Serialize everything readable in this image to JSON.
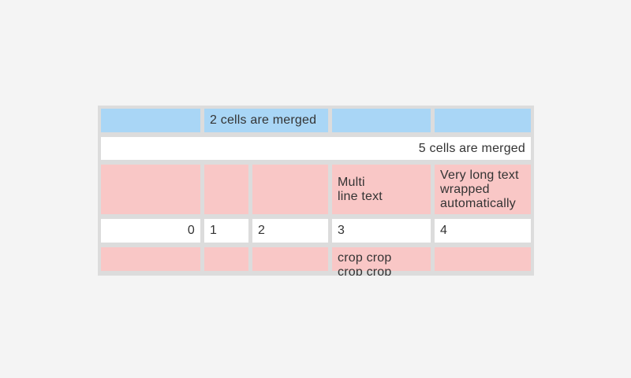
{
  "page": {
    "background": "#f4f4f4"
  },
  "table": {
    "background": "#dcdcdc",
    "colors": {
      "blue": "#a9d6f6",
      "pink": "#f9c7c6",
      "white": "#ffffff",
      "text": "#333333"
    },
    "rows": [
      {
        "name": "header-row",
        "cells": [
          {
            "text": "",
            "span": 1,
            "bg": "blue"
          },
          {
            "text": "2 cells are merged",
            "span": 2,
            "bg": "blue"
          },
          {
            "text": "",
            "span": 1,
            "bg": "blue"
          },
          {
            "text": "",
            "span": 1,
            "bg": "blue"
          }
        ]
      },
      {
        "name": "full-merged-row",
        "cells": [
          {
            "text": "5 cells are merged",
            "span": 5,
            "bg": "white",
            "align": "right"
          }
        ]
      },
      {
        "name": "multiline-row",
        "cells": [
          {
            "text": "",
            "span": 1,
            "bg": "pink"
          },
          {
            "text": "",
            "span": 1,
            "bg": "pink"
          },
          {
            "text": "",
            "span": 1,
            "bg": "pink"
          },
          {
            "text": "Multi\nline text",
            "span": 1,
            "bg": "pink"
          },
          {
            "text": "Very long text wrapped automatically",
            "span": 1,
            "bg": "pink"
          }
        ]
      },
      {
        "name": "numbers-row",
        "cells": [
          {
            "text": "0",
            "span": 1,
            "bg": "white",
            "align": "right"
          },
          {
            "text": "1",
            "span": 1,
            "bg": "white"
          },
          {
            "text": "2",
            "span": 1,
            "bg": "white"
          },
          {
            "text": "3",
            "span": 1,
            "bg": "white"
          },
          {
            "text": "4",
            "span": 1,
            "bg": "white"
          }
        ]
      },
      {
        "name": "cropped-row",
        "cells": [
          {
            "text": "",
            "span": 1,
            "bg": "pink"
          },
          {
            "text": "",
            "span": 1,
            "bg": "pink"
          },
          {
            "text": "",
            "span": 1,
            "bg": "pink"
          },
          {
            "text": "crop crop\ncrop crop",
            "span": 1,
            "bg": "pink",
            "crop": true
          },
          {
            "text": "",
            "span": 1,
            "bg": "pink"
          }
        ]
      }
    ]
  }
}
